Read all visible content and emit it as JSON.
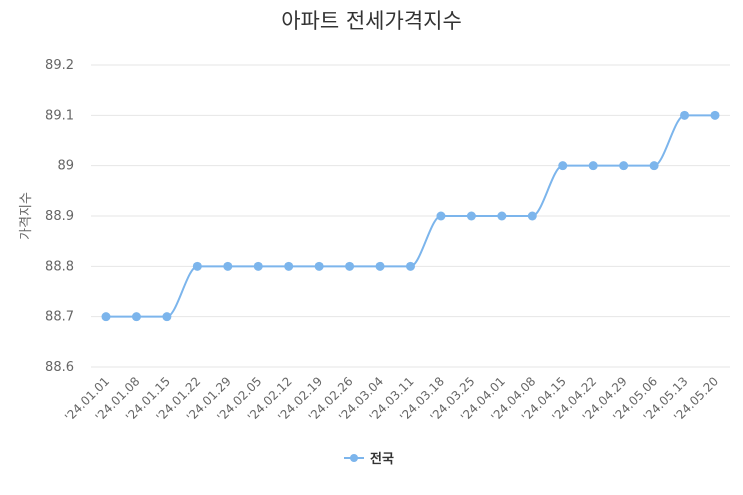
{
  "chart_data": {
    "type": "line",
    "title": "아파트 전세가격지수",
    "ylabel": "가격지수",
    "ylim": [
      88.6,
      89.2
    ],
    "yticks": [
      "88.6",
      "88.7",
      "88.8",
      "88.9",
      "89",
      "89.1",
      "89.2"
    ],
    "grid": true,
    "legend_position": "bottom-center",
    "categories": [
      "'24.01.01",
      "'24.01.08",
      "'24.01.15",
      "'24.01.22",
      "'24.01.29",
      "'24.02.05",
      "'24.02.12",
      "'24.02.19",
      "'24.02.26",
      "'24.03.04",
      "'24.03.11",
      "'24.03.18",
      "'24.03.25",
      "'24.04.01",
      "'24.04.08",
      "'24.04.15",
      "'24.04.22",
      "'24.04.29",
      "'24.05.06",
      "'24.05.13",
      "'24.05.20"
    ],
    "series": [
      {
        "name": "전국",
        "color": "#7cb5ec",
        "values": [
          88.7,
          88.7,
          88.7,
          88.8,
          88.8,
          88.8,
          88.8,
          88.8,
          88.8,
          88.8,
          88.8,
          88.9,
          88.9,
          88.9,
          88.9,
          89.0,
          89.0,
          89.0,
          89.0,
          89.1,
          89.1
        ]
      }
    ]
  }
}
